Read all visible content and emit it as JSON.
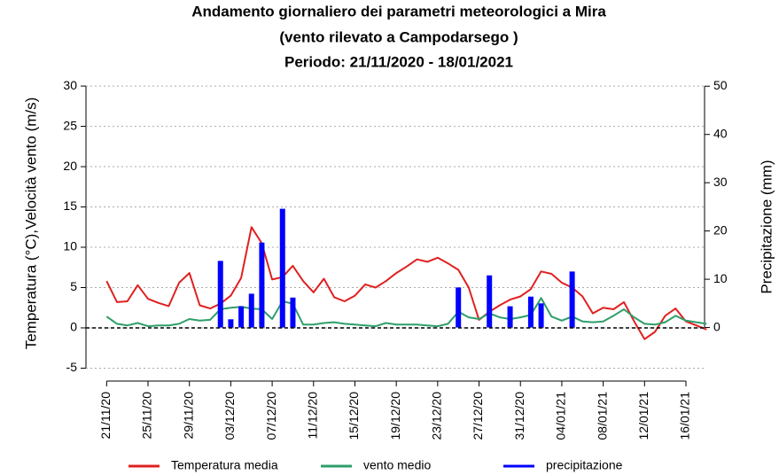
{
  "chart_data": {
    "type": "line",
    "title": [
      "Andamento giornaliero dei parametri meteorologici a Mira",
      "(vento rilevato a Campodarsego )",
      "Periodo:  21/11/2020 -  18/01/2021"
    ],
    "y_label": "Temperatura (°C),Velocità vento (m/s)",
    "y2_label": "Precipitazione (mm)",
    "categories": [
      "21/11/20",
      null,
      null,
      null,
      "25/11/20",
      null,
      null,
      null,
      "29/11/20",
      null,
      null,
      null,
      "03/12/20",
      null,
      null,
      null,
      "07/12/20",
      null,
      null,
      null,
      "11/12/20",
      null,
      null,
      null,
      "15/12/20",
      null,
      null,
      null,
      "19/12/20",
      null,
      null,
      null,
      "23/12/20",
      null,
      null,
      null,
      "27/12/20",
      null,
      null,
      null,
      "31/12/20",
      null,
      null,
      null,
      "04/01/21",
      null,
      null,
      null,
      "08/01/21",
      null,
      null,
      null,
      "12/01/21",
      null,
      null,
      null,
      "16/01/21",
      null,
      null
    ],
    "series": [
      {
        "name": "Temperatura media",
        "type": "line",
        "color": "#e02020",
        "values": [
          5.8,
          3.2,
          3.3,
          5.3,
          3.6,
          3.1,
          2.7,
          5.6,
          6.8,
          2.8,
          2.4,
          3.0,
          4.0,
          6.2,
          12.5,
          10.5,
          6.0,
          6.3,
          7.7,
          5.8,
          4.4,
          6.1,
          3.8,
          3.3,
          4.0,
          5.4,
          5.0,
          5.8,
          6.8,
          7.6,
          8.5,
          8.2,
          8.7,
          8.0,
          7.2,
          5.0,
          1.0,
          2.0,
          2.8,
          3.5,
          3.9,
          4.8,
          7.0,
          6.7,
          5.6,
          5.0,
          3.9,
          1.8,
          2.5,
          2.3,
          3.2,
          0.8,
          -1.4,
          -0.5,
          1.5,
          2.4,
          0.8,
          0.3,
          -0.2
        ]
      },
      {
        "name": "vento medio",
        "type": "line",
        "color": "#2e9e6a",
        "values": [
          1.4,
          0.5,
          0.3,
          0.6,
          0.2,
          0.3,
          0.3,
          0.5,
          1.1,
          0.9,
          1.0,
          2.3,
          2.5,
          2.6,
          2.4,
          2.3,
          1.1,
          3.3,
          3.0,
          0.4,
          0.4,
          0.6,
          0.7,
          0.5,
          0.4,
          0.3,
          0.2,
          0.6,
          0.4,
          0.4,
          0.4,
          0.3,
          0.2,
          0.5,
          2.0,
          1.3,
          1.1,
          1.8,
          1.3,
          1.1,
          1.3,
          1.6,
          3.7,
          1.4,
          0.9,
          1.4,
          0.8,
          0.7,
          0.8,
          1.5,
          2.3,
          1.3,
          0.5,
          0.4,
          0.7,
          1.5,
          0.9,
          0.7,
          0.5
        ]
      },
      {
        "name": "precipitazione",
        "type": "bar",
        "axis": "y2",
        "color": "#0000ff",
        "values": [
          0,
          0,
          0,
          0,
          0,
          0,
          0,
          0,
          0,
          0,
          0,
          13.8,
          1.7,
          4.4,
          7.0,
          17.6,
          0,
          24.6,
          6.2,
          0,
          0,
          0,
          0,
          0,
          0,
          0,
          0,
          0,
          0,
          0,
          0,
          0,
          0,
          0,
          8.3,
          0,
          0,
          10.8,
          0,
          4.4,
          0,
          6.4,
          5.0,
          0,
          0,
          11.6,
          0,
          0,
          0,
          0,
          0,
          0,
          0,
          0,
          0,
          0,
          0,
          0,
          0
        ]
      }
    ],
    "ylim": [
      -6.6,
      31
    ],
    "yticks": [
      -5,
      0,
      5,
      10,
      15,
      20,
      25,
      30
    ],
    "y2lim": [
      -11.1,
      51.7
    ],
    "y2ticks": [
      0,
      10,
      20,
      30,
      40,
      50
    ],
    "grid": true,
    "zero_line": true,
    "legend": "bottom"
  }
}
